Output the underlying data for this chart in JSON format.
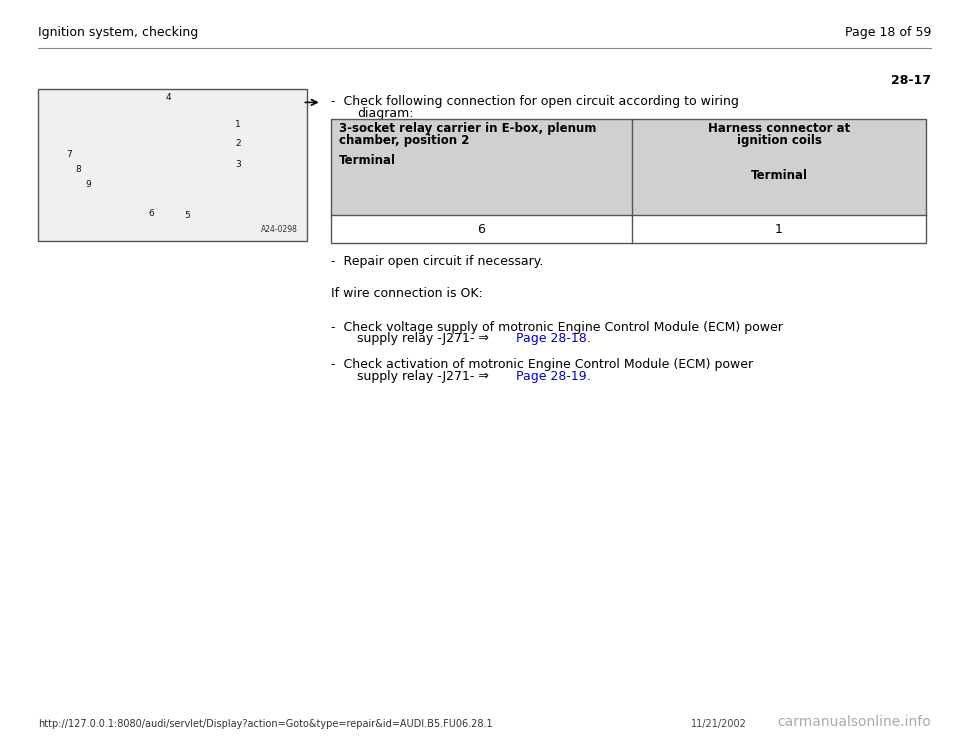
{
  "header_left": "Ignition system, checking",
  "header_right": "Page 18 of 59",
  "page_number": "28-17",
  "table_col1_header_line1": "3-socket relay carrier in E-box, plenum",
  "table_col1_header_line2": "chamber, position 2",
  "table_col1_subheader": "Terminal",
  "table_col2_header_line1": "Harness connector at",
  "table_col2_header_line2": "ignition coils",
  "table_col2_subheader": "Terminal",
  "table_col1_value": "6",
  "table_col2_value": "1",
  "table_bg": "#d0d0d0",
  "bullet_repair": "-  Repair open circuit if necessary.",
  "if_wire_text": "If wire connection is OK:",
  "bullet1_line1": "-  Check voltage supply of motronic Engine Control Module (ECM) power",
  "bullet1_line2": "supply relay -J271- ⇒ ",
  "bullet1_link": "Page 28-18",
  "bullet1_end": " .",
  "bullet2_line1": "-  Check activation of motronic Engine Control Module (ECM) power",
  "bullet2_line2": "supply relay -J271- ⇒ ",
  "bullet2_link": "Page 28-19",
  "bullet2_end": " .",
  "footer_url": "http://127.0.0.1:8080/audi/servlet/Display?action=Goto&type=repair&id=AUDI.B5.FU06.28.1",
  "footer_date": "11/21/2002",
  "footer_watermark": "carmanualsonline.info",
  "bg_color": "#ffffff",
  "text_color": "#000000",
  "link_color": "#0000cc",
  "header_font_size": 9,
  "body_font_size": 9,
  "table_header_font_size": 8.5,
  "footer_font_size": 7
}
